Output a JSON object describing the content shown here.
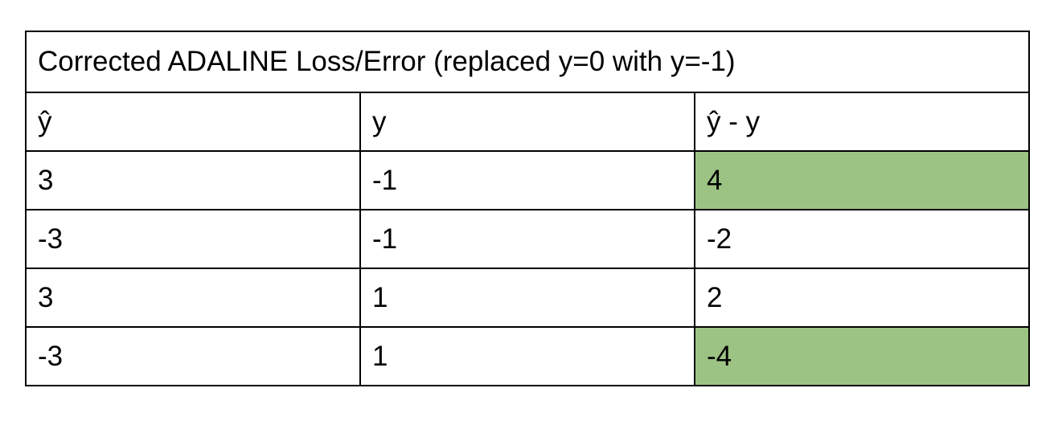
{
  "table": {
    "title": "Corrected ADALINE Loss/Error (replaced y=0 with y=-1)",
    "headers": [
      "ŷ",
      "y",
      "ŷ - y"
    ],
    "rows": [
      {
        "y_hat": "3",
        "y": "-1",
        "diff": "4",
        "highlight": true
      },
      {
        "y_hat": "-3",
        "y": "-1",
        "diff": "-2",
        "highlight": false
      },
      {
        "y_hat": "3",
        "y": "1",
        "diff": "2",
        "highlight": false
      },
      {
        "y_hat": "-3",
        "y": "1",
        "diff": "-4",
        "highlight": true
      }
    ]
  },
  "colors": {
    "highlight": "#9dc384",
    "border": "#000000",
    "background": "#ffffff"
  }
}
